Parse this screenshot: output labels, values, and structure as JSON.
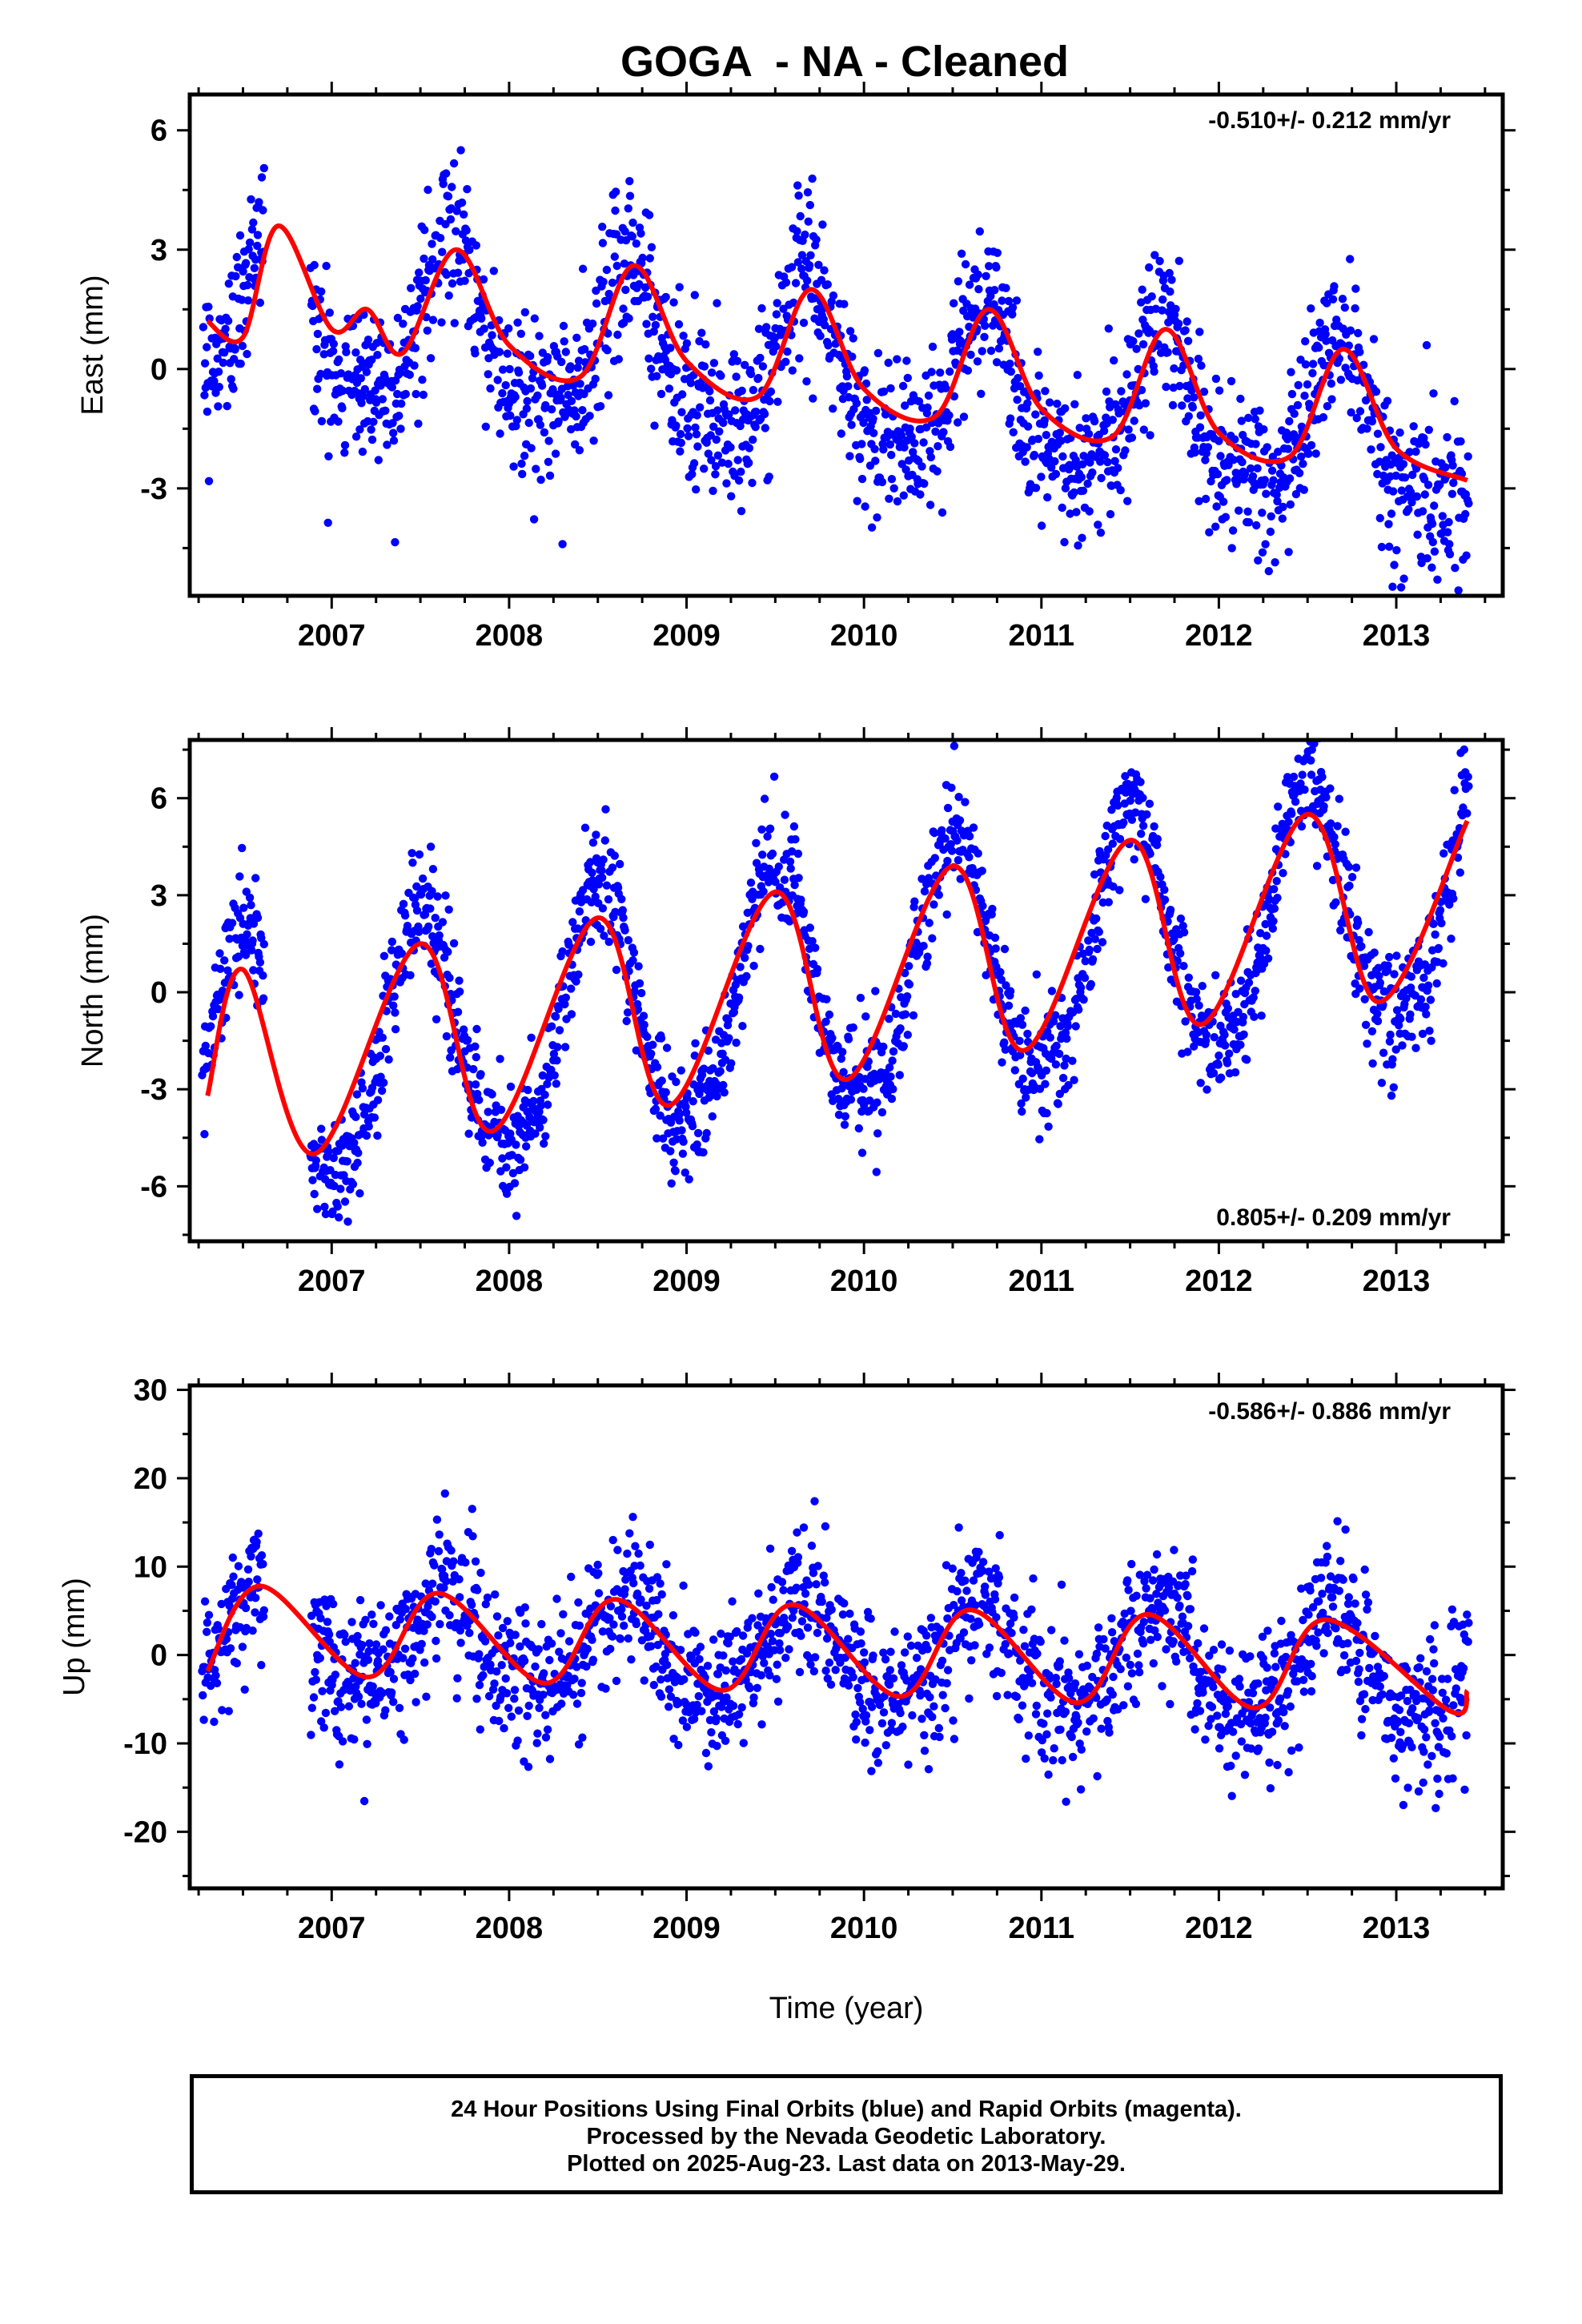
{
  "title": "GOGA  - NA - Cleaned",
  "xlabel": "Time (year)",
  "caption": [
    "24 Hour Positions Using Final Orbits (blue) and Rapid Orbits (magenta).",
    "Processed by the Nevada Geodetic Laboratory.",
    "Plotted on 2025-Aug-23. Last data on 2013-May-29."
  ],
  "colors": {
    "points": "#0000ff",
    "fit": "#ff0000",
    "axes": "#000000"
  },
  "chart_data": [
    {
      "type": "scatter",
      "ylabel": "East (mm)",
      "rate_text": "-0.510+/- 0.212 mm/yr",
      "rate_position": "top-right",
      "xlim": [
        2006.2,
        2013.6
      ],
      "ylim": [
        -5.7,
        6.9
      ],
      "yticks": [
        -3,
        0,
        3,
        6
      ],
      "xticks": [
        2007,
        2008,
        2009,
        2010,
        2011,
        2012,
        2013
      ],
      "trend": {
        "slope": -0.51,
        "at_2010": -0.3
      },
      "seasonal": {
        "annual_amp": 1.9,
        "annual_peak": 0.68,
        "semiannual_amp": 0.6
      },
      "scatter_sd": 1.0,
      "fit_line": [
        [
          2006.3,
          1.2
        ],
        [
          2006.5,
          0.8
        ],
        [
          2006.7,
          3.6
        ],
        [
          2007.0,
          1.0
        ],
        [
          2007.2,
          1.5
        ],
        [
          2007.4,
          0.4
        ],
        [
          2007.7,
          3.0
        ],
        [
          2008.0,
          0.6
        ],
        [
          2008.4,
          -0.2
        ],
        [
          2008.7,
          2.6
        ],
        [
          2009.0,
          0.2
        ],
        [
          2009.4,
          -0.7
        ],
        [
          2009.7,
          2.0
        ],
        [
          2010.0,
          -0.5
        ],
        [
          2010.4,
          -1.2
        ],
        [
          2010.7,
          1.5
        ],
        [
          2011.0,
          -1.0
        ],
        [
          2011.4,
          -1.7
        ],
        [
          2011.7,
          1.0
        ],
        [
          2012.0,
          -1.6
        ],
        [
          2012.4,
          -2.2
        ],
        [
          2012.7,
          0.5
        ],
        [
          2013.0,
          -2.0
        ],
        [
          2013.4,
          -2.8
        ]
      ]
    },
    {
      "type": "scatter",
      "ylabel": "North (mm)",
      "rate_text": "0.805+/- 0.209 mm/yr",
      "rate_position": "bottom-right",
      "xlim": [
        2006.2,
        2013.6
      ],
      "ylim": [
        -7.7,
        7.8
      ],
      "yticks": [
        -6,
        -3,
        0,
        3,
        6
      ],
      "xticks": [
        2007,
        2008,
        2009,
        2010,
        2011,
        2012,
        2013
      ],
      "trend": {
        "slope": 0.805,
        "at_2010": 0.3
      },
      "seasonal": {
        "annual_amp": 3.9,
        "annual_peak": 0.5,
        "semiannual_amp": 0.5
      },
      "scatter_sd": 0.9,
      "fit_line": [
        [
          2006.3,
          -3.2
        ],
        [
          2006.5,
          0.7
        ],
        [
          2006.9,
          -5.0
        ],
        [
          2007.5,
          1.5
        ],
        [
          2007.9,
          -4.3
        ],
        [
          2008.5,
          2.3
        ],
        [
          2008.9,
          -3.5
        ],
        [
          2009.5,
          3.1
        ],
        [
          2009.9,
          -2.7
        ],
        [
          2010.5,
          3.9
        ],
        [
          2010.9,
          -1.8
        ],
        [
          2011.5,
          4.7
        ],
        [
          2011.9,
          -1.0
        ],
        [
          2012.5,
          5.5
        ],
        [
          2012.9,
          -0.3
        ],
        [
          2013.4,
          5.3
        ]
      ]
    },
    {
      "type": "scatter",
      "ylabel": "Up (mm)",
      "rate_text": "-0.586+/- 0.886 mm/yr",
      "rate_position": "top-right",
      "xlim": [
        2006.2,
        2013.6
      ],
      "ylim": [
        -26.4,
        30.5
      ],
      "yticks": [
        -20,
        -10,
        0,
        10,
        20,
        30
      ],
      "xticks": [
        2007,
        2008,
        2009,
        2010,
        2011,
        2012,
        2013
      ],
      "trend": {
        "slope": -0.586,
        "at_2010": 0.0
      },
      "seasonal": {
        "annual_amp": 5.5,
        "annual_peak": 0.65,
        "semiannual_amp": 1.0
      },
      "scatter_sd": 4.0,
      "fit_line": [
        [
          2006.3,
          -1.8
        ],
        [
          2006.6,
          7.8
        ],
        [
          2007.2,
          -2.5
        ],
        [
          2007.6,
          7.0
        ],
        [
          2008.2,
          -3.2
        ],
        [
          2008.6,
          6.3
        ],
        [
          2009.2,
          -4.0
        ],
        [
          2009.6,
          5.7
        ],
        [
          2010.2,
          -4.7
        ],
        [
          2010.6,
          5.1
        ],
        [
          2011.2,
          -5.4
        ],
        [
          2011.6,
          4.6
        ],
        [
          2012.2,
          -6.0
        ],
        [
          2012.6,
          4.0
        ],
        [
          2013.3,
          -6.3
        ],
        [
          2013.4,
          -4.0
        ]
      ]
    }
  ]
}
